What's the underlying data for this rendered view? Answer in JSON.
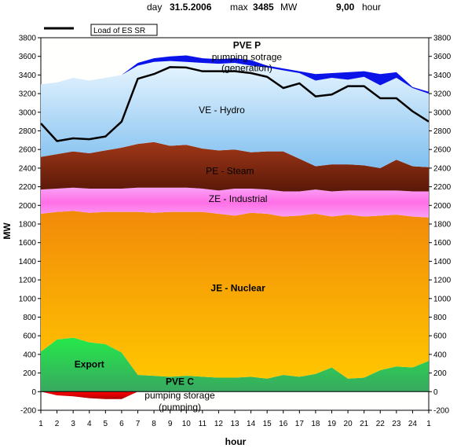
{
  "header": {
    "day_label": "day",
    "date": "31.5.2006",
    "max_label": "max",
    "max_value": "3485",
    "max_unit": "MW",
    "hour_value": "9,00",
    "hour_label": "hour"
  },
  "chart_data": {
    "type": "area",
    "xlabel": "hour",
    "ylabel": "MW",
    "ylim": [
      -200,
      3800
    ],
    "ytick_step": 200,
    "x": [
      1,
      2,
      3,
      4,
      5,
      6,
      7,
      8,
      9,
      10,
      11,
      12,
      13,
      14,
      15,
      16,
      17,
      18,
      19,
      20,
      21,
      22,
      23,
      24,
      1
    ],
    "x_tick_labels": [
      "1",
      "2",
      "3",
      "4",
      "5",
      "6",
      "7",
      "8",
      "9",
      "10",
      "11",
      "12",
      "13",
      "14",
      "15",
      "16",
      "17",
      "18",
      "19",
      "20",
      "21",
      "22",
      "23",
      "24",
      "1"
    ],
    "grid": false,
    "legend": {
      "label": "Load of ES SR",
      "placement": "top-left"
    },
    "stacked_boundaries": {
      "export_top": [
        430,
        560,
        580,
        530,
        510,
        420,
        180,
        170,
        160,
        170,
        160,
        150,
        150,
        160,
        140,
        180,
        160,
        190,
        260,
        140,
        150,
        230,
        270,
        260,
        330
      ],
      "nuclear_top": [
        1910,
        1930,
        1940,
        1920,
        1930,
        1930,
        1930,
        1920,
        1930,
        1930,
        1930,
        1910,
        1890,
        1920,
        1910,
        1880,
        1890,
        1910,
        1880,
        1900,
        1880,
        1890,
        1900,
        1880,
        1870
      ],
      "industrial_top": [
        2170,
        2180,
        2190,
        2180,
        2180,
        2180,
        2190,
        2190,
        2190,
        2190,
        2180,
        2160,
        2180,
        2180,
        2170,
        2150,
        2150,
        2170,
        2150,
        2160,
        2160,
        2160,
        2160,
        2150,
        2150
      ],
      "steam_top": [
        2520,
        2550,
        2580,
        2560,
        2590,
        2620,
        2660,
        2680,
        2640,
        2650,
        2610,
        2590,
        2600,
        2570,
        2580,
        2580,
        2500,
        2420,
        2440,
        2440,
        2430,
        2400,
        2490,
        2420,
        2410
      ],
      "hydro_top": [
        3300,
        3320,
        3370,
        3340,
        3370,
        3400,
        3500,
        3540,
        3550,
        3540,
        3530,
        3520,
        3530,
        3500,
        3480,
        3450,
        3420,
        3340,
        3370,
        3350,
        3380,
        3290,
        3370,
        3260,
        3200
      ],
      "pumped_gen_top": [
        3300,
        3320,
        3370,
        3340,
        3370,
        3400,
        3530,
        3580,
        3600,
        3610,
        3580,
        3570,
        3580,
        3560,
        3500,
        3470,
        3440,
        3410,
        3420,
        3430,
        3440,
        3410,
        3430,
        3270,
        3220
      ],
      "pumping_bottom": [
        0,
        -40,
        -50,
        -70,
        -80,
        -80,
        0,
        0,
        0,
        0,
        0,
        0,
        0,
        0,
        0,
        0,
        0,
        0,
        0,
        0,
        0,
        0,
        0,
        0,
        0
      ]
    },
    "series": [
      {
        "name": "Load of ES SR",
        "values": [
          2880,
          2690,
          2720,
          2710,
          2740,
          2900,
          3360,
          3410,
          3485,
          3480,
          3440,
          3440,
          3440,
          3420,
          3380,
          3260,
          3310,
          3170,
          3190,
          3280,
          3280,
          3150,
          3150,
          3010,
          2900
        ]
      }
    ],
    "region_labels": {
      "pvep_title": "PVE P",
      "pvep_line1": "pumping sotrage",
      "pvep_line2": "(generation)",
      "hydro": "VE - Hydro",
      "steam": "PE - Steam",
      "industrial": "ZE - Industrial",
      "nuclear": "JE - Nuclear",
      "export": "Export",
      "pvec_title": "PVE C",
      "pvec_line1": "pumping storage",
      "pvec_line2": "(pumping)"
    },
    "colors": {
      "background": "#ffffff",
      "plot_bg": "#fffffe",
      "pumped_gen": "#0a14e8",
      "hydro_top": "#e9f6ff",
      "hydro_bottom": "#80bfef",
      "steam_top": "#a03818",
      "steam_bottom": "#5a1808",
      "industrial_top": "#f9a0f6",
      "industrial_mid": "#ff6fe6",
      "nuclear_top": "#f28a0a",
      "nuclear_bottom": "#ffc600",
      "export_top": "#25e84a",
      "export_bottom": "#38a860",
      "pumping_top": "#ff0000",
      "pumping_bottom": "#b00000",
      "load_line": "#000000"
    }
  }
}
